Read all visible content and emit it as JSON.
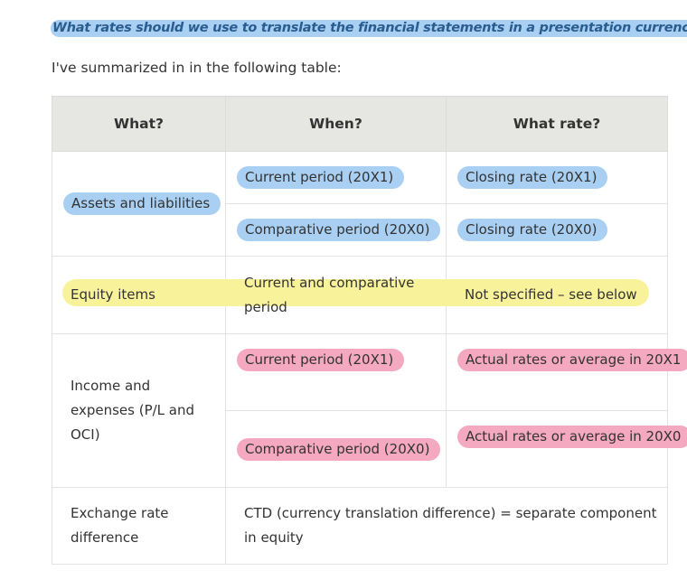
{
  "question": "What rates should we use to translate the financial statements in a presentation currency?",
  "intro": "I've summarized in in the following table:",
  "table": {
    "headers": [
      "What?",
      "When?",
      "What rate?"
    ],
    "assets": {
      "label": "Assets and liabilities",
      "current_when": "Current period (20X1)",
      "current_rate": "Closing rate (20X1)",
      "comparative_when": "Comparative period (20X0)",
      "comparative_rate": "Closing rate (20X0)"
    },
    "equity": {
      "label": "Equity items",
      "when": "Current and comparative period",
      "rate": "Not specified – see below"
    },
    "income": {
      "label": "Income and expenses (P/L and OCI)",
      "current_when": "Current period (20X1)",
      "current_rate": "Actual rates or average in 20X1",
      "comparative_when": "Comparative period (20X0)",
      "comparative_rate": "Actual rates or average in 20X0"
    },
    "exchange": {
      "label": "Exchange rate difference",
      "text": "CTD (currency translation difference) = separate component in equity"
    }
  },
  "colors": {
    "blue_highlight": "#a9cff3",
    "pink_highlight": "#f4a9c0",
    "yellow_highlight": "#f8f39a",
    "header_bg": "#e6e6e2"
  }
}
